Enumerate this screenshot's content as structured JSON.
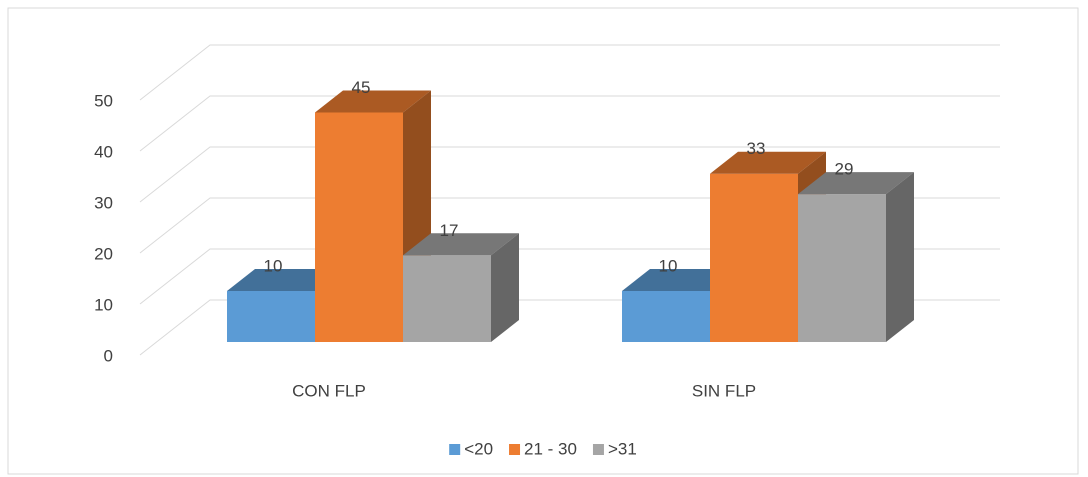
{
  "chart_data": {
    "type": "bar3d",
    "categories": [
      "CON FLP",
      "SIN FLP"
    ],
    "series": [
      {
        "name": "<20",
        "color": "#5b9bd5",
        "values": [
          10,
          10
        ]
      },
      {
        "name": "21 - 30",
        "color": "#ed7d31",
        "values": [
          45,
          33
        ]
      },
      {
        "name": ">31",
        "color": "#a5a5a5",
        "values": [
          17,
          29
        ]
      }
    ],
    "ylim": [
      0,
      50
    ],
    "yticks": [
      0,
      10,
      20,
      30,
      40,
      50
    ],
    "grid": true,
    "legend": "bottom"
  }
}
